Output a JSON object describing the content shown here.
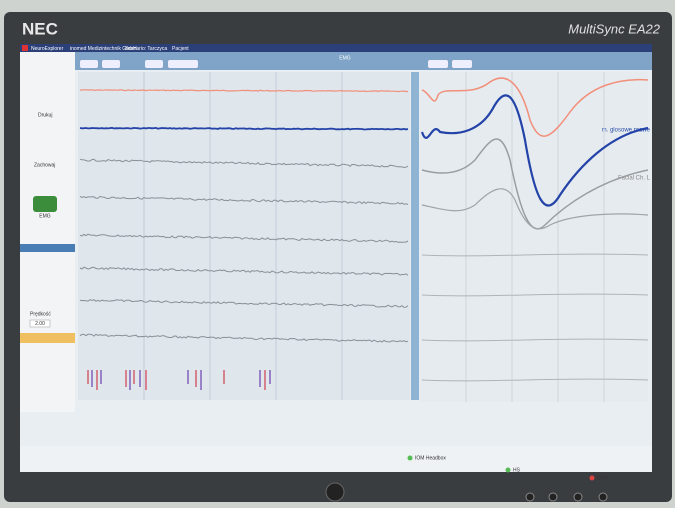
{
  "monitor": {
    "brand": "NEC",
    "model": "MultiSync EA22"
  },
  "app": {
    "title": "NeuroExplorer",
    "menu": [
      "inomed Medizintechnik GmbH",
      "Scenario: Tarczyca",
      "Pacjent"
    ],
    "panel_title": "EMG",
    "sidebar": [
      "Drukuj",
      "Zachowaj",
      "EMG",
      "Prędkość",
      "2.00"
    ],
    "channels": [
      "m. glosowe prawe",
      "Facial Ch. L"
    ],
    "status": [
      "IOM Headbox",
      "HS",
      "DMS"
    ]
  }
}
